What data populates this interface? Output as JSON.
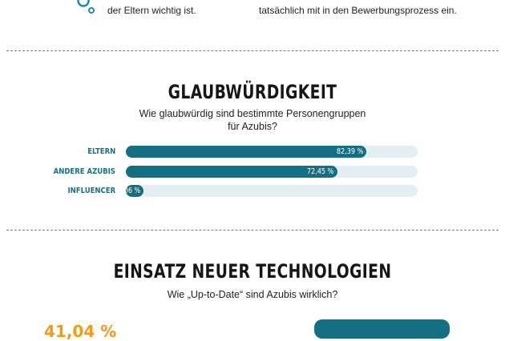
{
  "top": {
    "left_line": "der Eltern wichtig ist.",
    "right_line": "tatsächlich mit in den Bewerbungsprozess ein."
  },
  "section_credibility": {
    "title": "GLAUBWÜRDIGKEIT",
    "subtitle_line1": "Wie glaubwürdig sind bestimmte Personengruppen",
    "subtitle_line2": "für Azubis?"
  },
  "chart_data": {
    "type": "bar",
    "orientation": "horizontal",
    "categories": [
      "ELTERN",
      "ANDERE AZUBIS",
      "INFLUENCER"
    ],
    "values": [
      82.39,
      72.45,
      6.06
    ],
    "value_labels": [
      "82,39 %",
      "72,45 %",
      "6,06 %"
    ],
    "unit": "%",
    "xlim": [
      0,
      100
    ],
    "colors": {
      "fill": "#156f83",
      "track": "#e4eff3",
      "label": "#1e6f80"
    }
  },
  "section_technology": {
    "title": "EINSATZ NEUER TECHNOLOGIEN",
    "subtitle": "Wie „Up-to-Date“ sind Azubis wirklich?",
    "partial_number": "41,04 %"
  },
  "colors": {
    "accent_teal": "#156f83",
    "accent_orange": "#f29a1a"
  },
  "icons": {
    "top_left": "bubble-icon"
  }
}
